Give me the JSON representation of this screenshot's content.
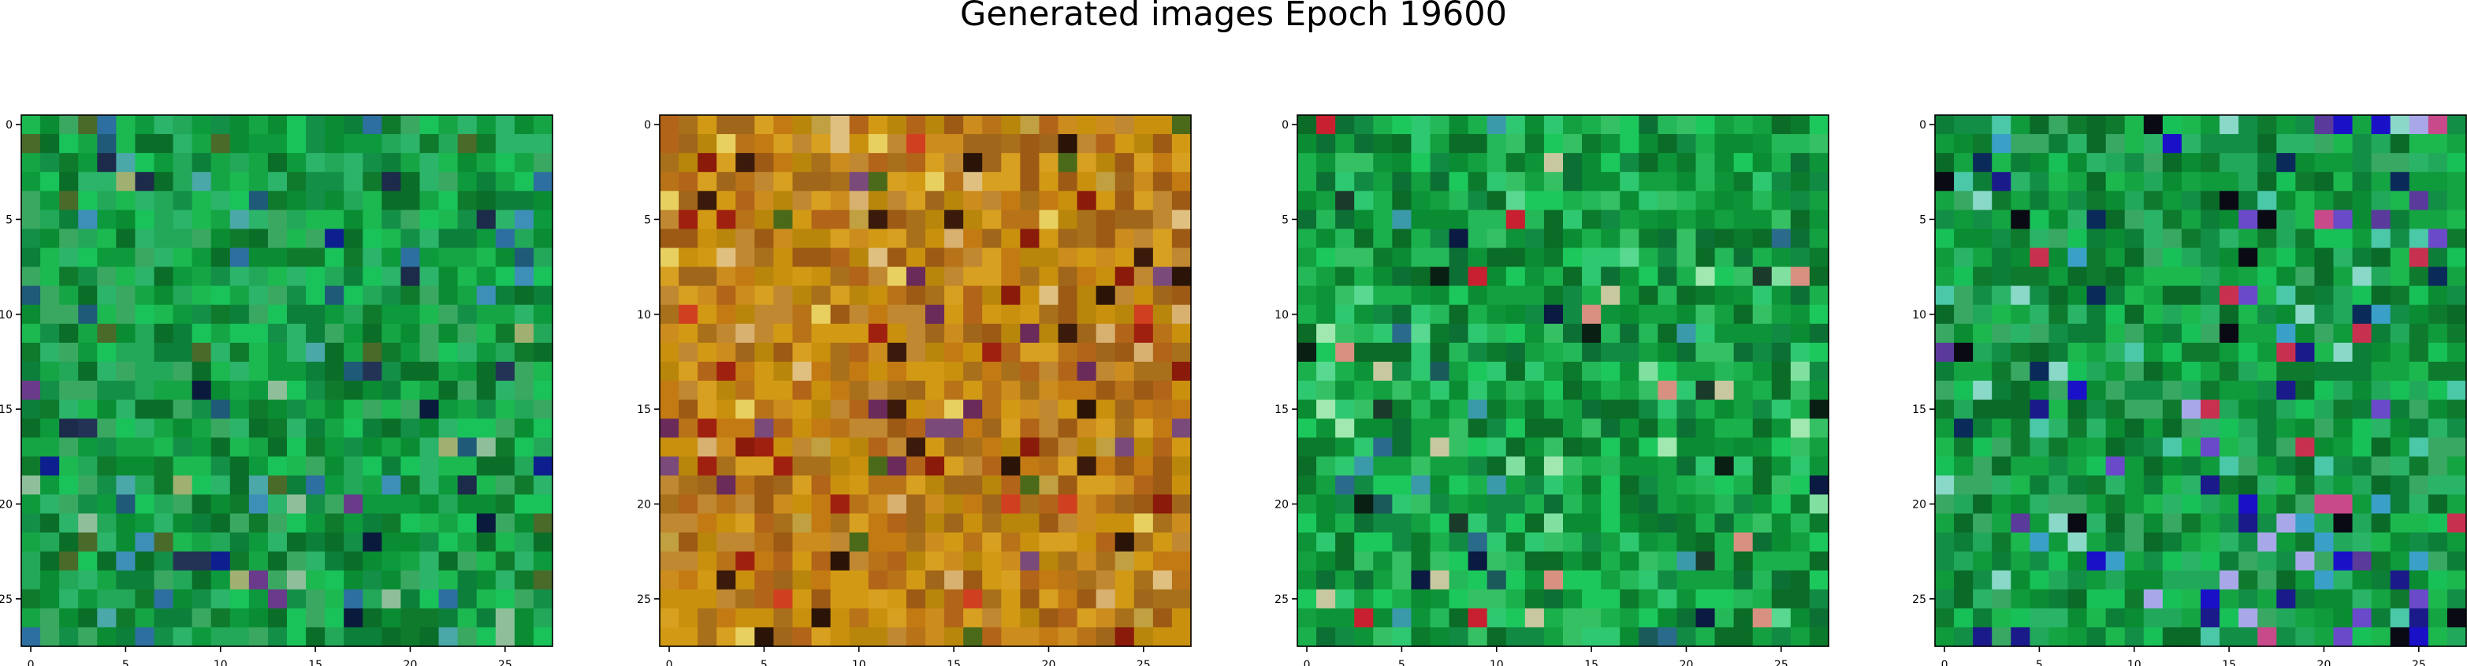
{
  "figure": {
    "title": "Generated images Epoch 19600"
  },
  "chart_data": {
    "type": "heatmap",
    "title": "Generated images Epoch 19600",
    "image_size": 28,
    "x_ticks": [
      0,
      5,
      10,
      15,
      20,
      25
    ],
    "y_ticks": [
      0,
      5,
      10,
      15,
      20,
      25
    ],
    "xlim": [
      -0.5,
      27.5
    ],
    "ylim": [
      27.5,
      -0.5
    ],
    "grid": false,
    "panels": [
      {
        "palette": [
          "#0a8c32",
          "#16a544",
          "#0f7a2c",
          "#1cb850",
          "#0d9a3c",
          "#22a858",
          "#0a6e28",
          "#2bb46a",
          "#138f48",
          "#0c7f3a",
          "#3aa860",
          "#19c35a"
        ],
        "accents": [
          "#1c2b4a",
          "#4aa8a8",
          "#2d6fa0",
          "#6a3b8a",
          "#0a1a3c",
          "#8fbf9a",
          "#1f5a78",
          "#0d1f8f",
          "#4a6a2a",
          "#a0b070",
          "#223355",
          "#3d8fb8"
        ],
        "accent_rate": 0.12,
        "seed": 11
      },
      {
        "palette": [
          "#b8860b",
          "#c9900e",
          "#a0661a",
          "#d29a14",
          "#b87318",
          "#c47a12",
          "#9c5a14",
          "#d8a020",
          "#a8701a",
          "#c08830",
          "#b26418",
          "#cc8c1e"
        ],
        "accents": [
          "#8a1a0a",
          "#d8b070",
          "#3a1a0a",
          "#6a2a5a",
          "#e0c080",
          "#a02010",
          "#4a6a1a",
          "#d04020",
          "#2a1408",
          "#c0a040",
          "#7a4a7a",
          "#e8d060"
        ],
        "accent_rate": 0.16,
        "seed": 29
      },
      {
        "palette": [
          "#0a8c32",
          "#13a040",
          "#0c7a2c",
          "#1ab04c",
          "#0e9438",
          "#24b858",
          "#0a6c26",
          "#2ec870",
          "#118a44",
          "#0c7034",
          "#36c064",
          "#1cc85c"
        ],
        "accents": [
          "#0a1f14",
          "#58d890",
          "#1a5a5a",
          "#c8c8a0",
          "#c82030",
          "#2a6a8a",
          "#80e0a0",
          "#0a1a40",
          "#d89080",
          "#1a3a2a",
          "#a0e8b0",
          "#3a9aaa"
        ],
        "accent_rate": 0.1,
        "seed": 47
      },
      {
        "palette": [
          "#0a8c32",
          "#15a442",
          "#0e7a2e",
          "#1cb84e",
          "#0f9a3c",
          "#22a85a",
          "#0a6a28",
          "#2ab468",
          "#128e46",
          "#0c7e38",
          "#38a862",
          "#18c058"
        ],
        "accents": [
          "#1a10c8",
          "#6a4ac8",
          "#0a0a14",
          "#c84a8a",
          "#3aa0c8",
          "#0a2a5a",
          "#a8a8e8",
          "#c83050",
          "#4ac8a8",
          "#1a1a8a",
          "#8ad8c8",
          "#5a3a9a"
        ],
        "accent_rate": 0.14,
        "seed": 83
      }
    ]
  }
}
